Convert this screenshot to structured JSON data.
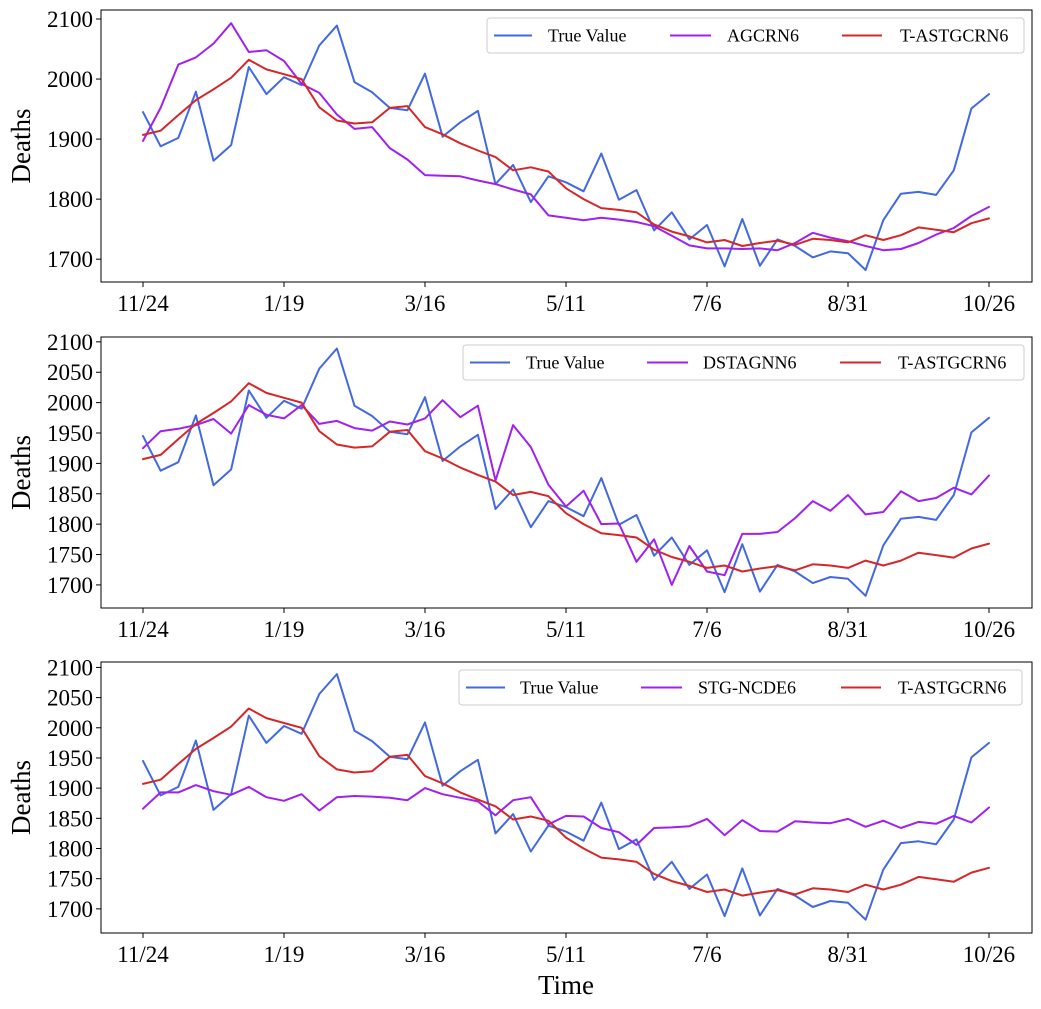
{
  "figure": {
    "xlabel": "Time",
    "colors": {
      "true_value": "#4169e1",
      "baseline": "#a020f0",
      "proposed": "#d62728"
    }
  },
  "chart_data": [
    {
      "type": "line",
      "title": "",
      "xlabel": "",
      "ylabel": "Deaths",
      "xtick_labels": [
        "11/24",
        "1/19",
        "3/16",
        "5/11",
        "7/6",
        "8/31",
        "10/26"
      ],
      "yticks": [
        1700,
        1800,
        1900,
        2000,
        2100
      ],
      "ylim": [
        1662,
        2115
      ],
      "legend": "top-right",
      "grid": false,
      "series": [
        {
          "name": "True Value",
          "color_key": "true_value",
          "values": [
            1945,
            1888,
            1902,
            1979,
            1864,
            1890,
            2020,
            1975,
            2003,
            1990,
            2056,
            2089,
            1995,
            1978,
            1952,
            1948,
            2009,
            1904,
            1928,
            1947,
            1825,
            1857,
            1795,
            1838,
            1828,
            1813,
            1876,
            1799,
            1815,
            1748,
            1778,
            1733,
            1757,
            1688,
            1767,
            1689,
            1733,
            1722,
            1703,
            1713,
            1710,
            1682,
            1765,
            1809,
            1812,
            1807,
            1848,
            1951,
            1975
          ]
        },
        {
          "name": "AGCRN6",
          "color_key": "baseline",
          "values": [
            1897,
            1952,
            2024,
            2036,
            2059,
            2093,
            2045,
            2048,
            2030,
            1992,
            1977,
            1941,
            1917,
            1920,
            1885,
            1866,
            1840,
            1839,
            1838,
            1831,
            1825,
            1816,
            1808,
            1773,
            1769,
            1765,
            1769,
            1766,
            1762,
            1755,
            1739,
            1723,
            1718,
            1718,
            1717,
            1718,
            1715,
            1727,
            1744,
            1736,
            1730,
            1722,
            1715,
            1717,
            1727,
            1741,
            1752,
            1772,
            1787
          ]
        },
        {
          "name": "T-ASTGCRN6",
          "color_key": "proposed",
          "values": [
            1907,
            1914,
            1940,
            1965,
            1983,
            2002,
            2032,
            2016,
            2008,
            2000,
            1953,
            1931,
            1926,
            1928,
            1952,
            1955,
            1920,
            1908,
            1893,
            1881,
            1870,
            1848,
            1853,
            1846,
            1818,
            1800,
            1785,
            1782,
            1778,
            1758,
            1746,
            1738,
            1728,
            1732,
            1722,
            1727,
            1731,
            1724,
            1734,
            1732,
            1728,
            1740,
            1732,
            1740,
            1753,
            1749,
            1745,
            1760,
            1768
          ]
        }
      ]
    },
    {
      "type": "line",
      "title": "",
      "xlabel": "",
      "ylabel": "Deaths",
      "xtick_labels": [
        "11/24",
        "1/19",
        "3/16",
        "5/11",
        "7/6",
        "8/31",
        "10/26"
      ],
      "yticks": [
        1700,
        1750,
        1800,
        1850,
        1900,
        1950,
        2000,
        2050,
        2100
      ],
      "ylim": [
        1662,
        2108
      ],
      "legend": "top-right",
      "grid": false,
      "series": [
        {
          "name": "True Value",
          "color_key": "true_value",
          "values": [
            1945,
            1888,
            1902,
            1979,
            1864,
            1890,
            2020,
            1975,
            2003,
            1990,
            2056,
            2089,
            1995,
            1978,
            1952,
            1948,
            2009,
            1904,
            1928,
            1947,
            1825,
            1857,
            1795,
            1838,
            1828,
            1813,
            1876,
            1799,
            1815,
            1748,
            1778,
            1733,
            1757,
            1688,
            1767,
            1689,
            1733,
            1722,
            1703,
            1713,
            1710,
            1682,
            1765,
            1809,
            1812,
            1807,
            1848,
            1951,
            1975
          ]
        },
        {
          "name": "DSTAGNN6",
          "color_key": "baseline",
          "values": [
            1925,
            1953,
            1957,
            1963,
            1973,
            1949,
            1996,
            1980,
            1974,
            1996,
            1965,
            1970,
            1958,
            1954,
            1969,
            1964,
            1974,
            2004,
            1976,
            1995,
            1872,
            1963,
            1927,
            1865,
            1829,
            1855,
            1800,
            1801,
            1738,
            1775,
            1700,
            1764,
            1722,
            1716,
            1784,
            1784,
            1787,
            1810,
            1838,
            1822,
            1848,
            1816,
            1820,
            1854,
            1838,
            1843,
            1860,
            1849,
            1880
          ]
        },
        {
          "name": "T-ASTGCRN6",
          "color_key": "proposed",
          "values": [
            1907,
            1914,
            1940,
            1965,
            1983,
            2002,
            2032,
            2016,
            2008,
            2000,
            1953,
            1931,
            1926,
            1928,
            1952,
            1955,
            1920,
            1908,
            1893,
            1881,
            1870,
            1848,
            1853,
            1846,
            1818,
            1800,
            1785,
            1782,
            1778,
            1758,
            1746,
            1738,
            1728,
            1732,
            1722,
            1727,
            1731,
            1724,
            1734,
            1732,
            1728,
            1740,
            1732,
            1740,
            1753,
            1749,
            1745,
            1760,
            1768
          ]
        }
      ]
    },
    {
      "type": "line",
      "title": "",
      "xlabel": "Time",
      "ylabel": "Deaths",
      "xtick_labels": [
        "11/24",
        "1/19",
        "3/16",
        "5/11",
        "7/6",
        "8/31",
        "10/26"
      ],
      "yticks": [
        1700,
        1750,
        1800,
        1850,
        1900,
        1950,
        2000,
        2050,
        2100
      ],
      "ylim": [
        1660,
        2109
      ],
      "legend": "top-right",
      "grid": false,
      "series": [
        {
          "name": "True Value",
          "color_key": "true_value",
          "values": [
            1945,
            1888,
            1902,
            1979,
            1864,
            1890,
            2020,
            1975,
            2003,
            1990,
            2056,
            2089,
            1995,
            1978,
            1952,
            1948,
            2009,
            1904,
            1928,
            1947,
            1825,
            1857,
            1795,
            1838,
            1828,
            1813,
            1876,
            1799,
            1815,
            1748,
            1778,
            1733,
            1757,
            1688,
            1767,
            1689,
            1733,
            1722,
            1703,
            1713,
            1710,
            1682,
            1765,
            1809,
            1812,
            1807,
            1848,
            1951,
            1975
          ]
        },
        {
          "name": "STG-NCDE6",
          "color_key": "baseline",
          "values": [
            1866,
            1893,
            1893,
            1905,
            1895,
            1889,
            1902,
            1885,
            1879,
            1890,
            1863,
            1885,
            1887,
            1886,
            1884,
            1880,
            1900,
            1890,
            1884,
            1878,
            1855,
            1880,
            1885,
            1840,
            1854,
            1853,
            1834,
            1827,
            1806,
            1834,
            1835,
            1837,
            1849,
            1822,
            1847,
            1829,
            1828,
            1845,
            1843,
            1842,
            1849,
            1836,
            1846,
            1834,
            1844,
            1841,
            1854,
            1843,
            1868
          ]
        },
        {
          "name": "T-ASTGCRN6",
          "color_key": "proposed",
          "values": [
            1907,
            1914,
            1940,
            1965,
            1983,
            2002,
            2032,
            2016,
            2008,
            2000,
            1953,
            1931,
            1926,
            1928,
            1952,
            1955,
            1920,
            1908,
            1893,
            1881,
            1870,
            1848,
            1853,
            1846,
            1818,
            1800,
            1785,
            1782,
            1778,
            1758,
            1746,
            1738,
            1728,
            1732,
            1722,
            1727,
            1731,
            1724,
            1734,
            1732,
            1728,
            1740,
            1732,
            1740,
            1753,
            1749,
            1745,
            1760,
            1768
          ]
        }
      ]
    }
  ]
}
